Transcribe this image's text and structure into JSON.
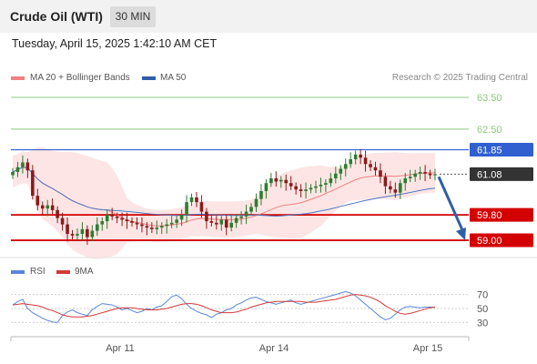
{
  "header": {
    "instrument": "Crude Oil (WTI)",
    "timeframe": "30 MIN",
    "datetime": "Tuesday, April 15, 2025 1:42:10 AM CET"
  },
  "legend": {
    "ma20": "MA 20 + Bollinger Bands",
    "ma50": "MA 50",
    "rsi": "RSI",
    "rsi_ma": "9MA"
  },
  "copyright": "Research © 2025 Trading Central",
  "colors": {
    "ma20": "#f08080",
    "ma50": "#4f78c4",
    "band": "#fde0e0",
    "up": "#2e7d32",
    "down": "#8b1a1a",
    "resistance": "#8dc97d",
    "pivot": "#3060d0",
    "support": "#d40000",
    "current": "#333333",
    "arrow": "#2f5ea8",
    "rsi": "#5b86d8",
    "rsi_ma": "#d33a3a"
  },
  "chart_data": {
    "type": "candlestick",
    "y_range": [
      58.6,
      63.9
    ],
    "x_ticks": [
      "Apr 11",
      "Apr 14",
      "Apr 15"
    ],
    "levels": [
      {
        "value": "63.50",
        "kind": "resistance"
      },
      {
        "value": "62.50",
        "kind": "resistance"
      },
      {
        "value": "61.85",
        "kind": "pivot"
      },
      {
        "value": "61.08",
        "kind": "current"
      },
      {
        "value": "59.80",
        "kind": "support"
      },
      {
        "value": "59.00",
        "kind": "support"
      }
    ],
    "forecast": {
      "from": 61.0,
      "to": 59.0
    },
    "close": [
      61.15,
      61.3,
      61.45,
      61.2,
      60.4,
      60.1,
      60.0,
      60.1,
      59.95,
      59.7,
      59.5,
      59.2,
      59.15,
      59.2,
      59.35,
      59.1,
      59.3,
      59.5,
      59.6,
      59.8,
      59.75,
      59.7,
      59.65,
      59.6,
      59.55,
      59.5,
      59.45,
      59.4,
      59.35,
      59.4,
      59.45,
      59.5,
      59.55,
      59.65,
      59.8,
      60.2,
      60.35,
      60.2,
      59.9,
      59.6,
      59.55,
      59.5,
      59.65,
      59.4,
      59.55,
      59.7,
      59.75,
      59.9,
      60.05,
      60.3,
      60.55,
      60.8,
      60.95,
      60.85,
      60.9,
      60.8,
      60.7,
      60.6,
      60.55,
      60.6,
      60.65,
      60.7,
      60.75,
      60.8,
      60.95,
      61.1,
      61.25,
      61.4,
      61.55,
      61.7,
      61.6,
      61.4,
      61.3,
      61.2,
      61.0,
      60.7,
      60.6,
      60.5,
      60.8,
      60.95,
      61.0,
      61.1,
      61.15,
      61.1,
      61.05,
      61.08
    ]
  },
  "rsi_chart": {
    "ticks": [
      "70",
      "50",
      "30"
    ],
    "rsi": [
      55,
      60,
      63,
      50,
      44,
      40,
      36,
      33,
      31,
      30,
      40,
      45,
      48,
      44,
      42,
      40,
      48,
      53,
      57,
      56,
      55,
      52,
      48,
      50,
      47,
      44,
      46,
      50,
      48,
      52,
      54,
      60,
      67,
      69,
      64,
      56,
      50,
      46,
      43,
      41,
      37,
      42,
      44,
      48,
      50,
      55,
      58,
      62,
      65,
      66,
      63,
      60,
      58,
      56,
      58,
      60,
      62,
      58,
      56,
      58,
      60,
      62,
      64,
      66,
      68,
      70,
      72,
      74,
      72,
      68,
      62,
      56,
      50,
      44,
      38,
      34,
      36,
      42,
      48,
      52,
      53,
      52,
      51,
      52,
      52,
      52
    ],
    "ma9": [
      55,
      56,
      57,
      56,
      55,
      54,
      52,
      49,
      47,
      44,
      41,
      39,
      38,
      38,
      38,
      39,
      40,
      42,
      44,
      46,
      48,
      50,
      51,
      51,
      51,
      50,
      49,
      48,
      48,
      48,
      49,
      50,
      52,
      54,
      56,
      57,
      57,
      56,
      54,
      51,
      48,
      46,
      44,
      44,
      44,
      45,
      47,
      49,
      52,
      54,
      56,
      58,
      59,
      60,
      60,
      60,
      60,
      60,
      60,
      59,
      59,
      59,
      60,
      61,
      62,
      63,
      65,
      67,
      69,
      70,
      69,
      68,
      66,
      63,
      59,
      54,
      50,
      46,
      43,
      42,
      43,
      45,
      47,
      49,
      51,
      52
    ]
  }
}
